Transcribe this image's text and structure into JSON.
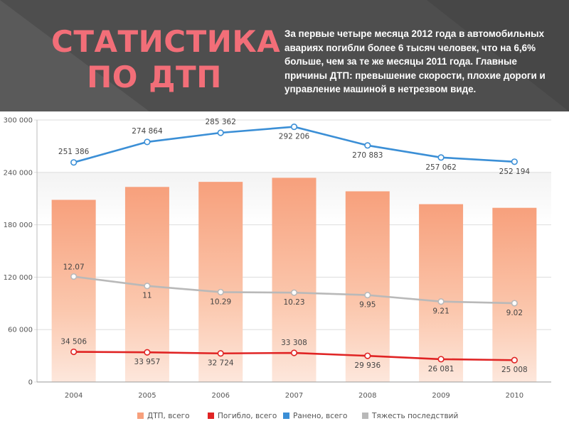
{
  "slide": {
    "title_line1": "Статистика",
    "title_line2": "по ДТП",
    "description": "За первые четыре месяца 2012 года в автомобильных авариях погибли более 6 тысяч человек, что на 6,6% больше, чем за те же месяцы 2011 года. Главные причины ДТП: превышение скорости, плохие дороги и управление машиной в нетрезвом виде."
  },
  "colors": {
    "header_bg": "#4e4e4e",
    "title": "#f26e78",
    "bars": "#f7a07c",
    "killed": "#e02424",
    "injured": "#3b8fd6",
    "severity": "#b9b9b9"
  },
  "chart_data": {
    "type": "bar",
    "categories": [
      "2004",
      "2005",
      "2006",
      "2007",
      "2008",
      "2009",
      "2010"
    ],
    "y_ticks": [
      "0",
      "60 000",
      "120 000",
      "180 000",
      "240 000",
      "300 000"
    ],
    "ylim": [
      0,
      300000
    ],
    "series": [
      {
        "name": "ДТП, всего",
        "kind": "bar",
        "values": [
          208558,
          223342,
          229140,
          233809,
          218322,
          203603,
          199431
        ]
      },
      {
        "name": "Погибло, всего",
        "kind": "line",
        "values": [
          34506,
          33957,
          32724,
          33308,
          29936,
          26081,
          25008
        ],
        "labels": [
          "34 506",
          "33 957",
          "32 724",
          "33 308",
          "29 936",
          "26 081",
          "25 008"
        ]
      },
      {
        "name": "Ранено, всего",
        "kind": "line",
        "values": [
          251386,
          274864,
          285362,
          292206,
          270883,
          257062,
          252194
        ],
        "labels": [
          "251 386",
          "274 864",
          "285 362",
          "292 206",
          "270 883",
          "257 062",
          "252 194"
        ]
      },
      {
        "name": "Тяжесть последствий",
        "kind": "line",
        "values": [
          12.07,
          11,
          10.29,
          10.23,
          9.95,
          9.21,
          9.02
        ],
        "labels": [
          "12.07",
          "11",
          "10.29",
          "10.23",
          "9.95",
          "9.21",
          "9.02"
        ],
        "display_scale": 10000
      }
    ],
    "legend_position": "bottom"
  }
}
